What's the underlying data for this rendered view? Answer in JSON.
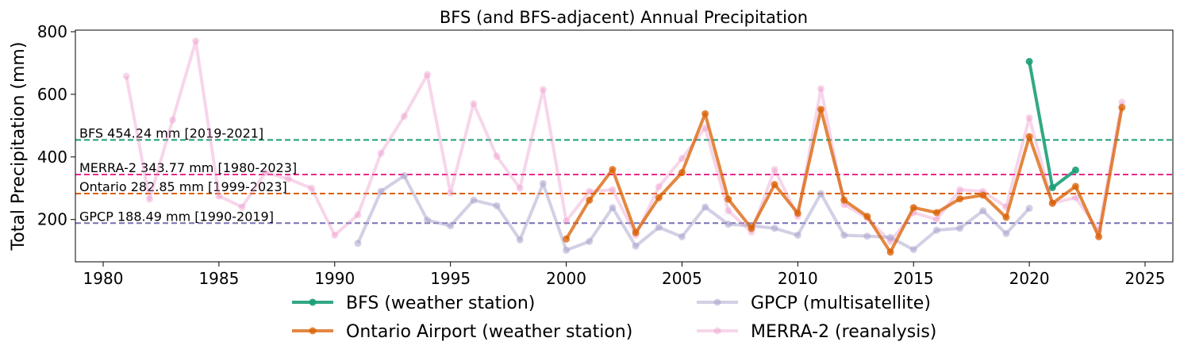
{
  "chart_data": {
    "type": "line",
    "title": "BFS (and BFS-adjacent) Annual Precipitation",
    "xlabel": "",
    "ylabel": "Total Precipitation (mm)",
    "xlim": [
      1978.8,
      2026.2
    ],
    "ylim": [
      65,
      805
    ],
    "xticks": [
      1980,
      1985,
      1990,
      1995,
      2000,
      2005,
      2010,
      2015,
      2020,
      2025
    ],
    "yticks": [
      200,
      400,
      600,
      800
    ],
    "series": [
      {
        "name": "MERRA-2 (reanalysis)",
        "color": "#e78ac3",
        "alpha": 0.35,
        "x": [
          1981,
          1982,
          1983,
          1984,
          1985,
          1986,
          1987,
          1988,
          1989,
          1990,
          1991,
          1992,
          1993,
          1994,
          1995,
          1996,
          1997,
          1998,
          1999,
          2000,
          2001,
          2002,
          2003,
          2004,
          2005,
          2006,
          2007,
          2008,
          2009,
          2010,
          2011,
          2012,
          2013,
          2014,
          2015,
          2016,
          2017,
          2018,
          2019,
          2020,
          2021,
          2022,
          2023,
          2024
        ],
        "values": [
          658,
          265,
          518,
          770,
          275,
          240,
          350,
          330,
          300,
          150,
          215,
          412,
          530,
          663,
          285,
          570,
          402,
          300,
          615,
          195,
          290,
          295,
          150,
          305,
          395,
          493,
          228,
          160,
          360,
          210,
          618,
          248,
          205,
          130,
          222,
          200,
          295,
          290,
          240,
          525,
          252,
          270,
          165,
          575
        ]
      },
      {
        "name": "GPCP (multisatellite)",
        "color": "#a7a0ca",
        "alpha": 0.5,
        "x": [
          1991,
          1992,
          1993,
          1994,
          1995,
          1996,
          1997,
          1998,
          1999,
          2000,
          2001,
          2002,
          2003,
          2004,
          2005,
          2006,
          2007,
          2008,
          2009,
          2010,
          2011,
          2012,
          2013,
          2014,
          2015,
          2016,
          2017,
          2018,
          2019,
          2020
        ],
        "values": [
          124,
          290,
          340,
          198,
          180,
          262,
          244,
          135,
          315,
          102,
          130,
          238,
          115,
          175,
          145,
          240,
          185,
          180,
          172,
          150,
          283,
          150,
          147,
          143,
          104,
          166,
          172,
          228,
          155,
          236
        ]
      },
      {
        "name": "Ontario Airport (weather station)",
        "color": "#d95f02",
        "alpha": 0.75,
        "x": [
          2000,
          2001,
          2002,
          2003,
          2004,
          2005,
          2006,
          2007,
          2008,
          2009,
          2010,
          2011,
          2012,
          2013,
          2014,
          2015,
          2016,
          2017,
          2018,
          2019,
          2020,
          2021,
          2022,
          2023,
          2024
        ],
        "values": [
          138,
          262,
          360,
          158,
          270,
          350,
          538,
          265,
          172,
          312,
          220,
          552,
          262,
          210,
          96,
          238,
          222,
          266,
          278,
          207,
          465,
          252,
          306,
          145,
          558
        ]
      },
      {
        "name": "BFS (weather station)",
        "color": "#1b9e77",
        "alpha": 0.9,
        "x": [
          2020,
          2021,
          2022
        ],
        "values": [
          705,
          302,
          358
        ]
      }
    ],
    "reference_lines": [
      {
        "label": "BFS 454.24 mm [2019-2021]",
        "value": 454.24,
        "color": "#1b9e77"
      },
      {
        "label": "MERRA-2 343.77 mm [1980-2023]",
        "value": 343.77,
        "color": "#e7298a"
      },
      {
        "label": "Ontario 282.85 mm [1999-2023]",
        "value": 282.85,
        "color": "#d95f02"
      },
      {
        "label": "GPCP 188.49 mm [1990-2019]",
        "value": 188.49,
        "color": "#7570b3"
      }
    ],
    "legend": {
      "placement": "bottom-center",
      "entries": [
        "BFS (weather station)",
        "GPCP (multisatellite)",
        "Ontario Airport (weather station)",
        "MERRA-2 (reanalysis)"
      ]
    }
  }
}
